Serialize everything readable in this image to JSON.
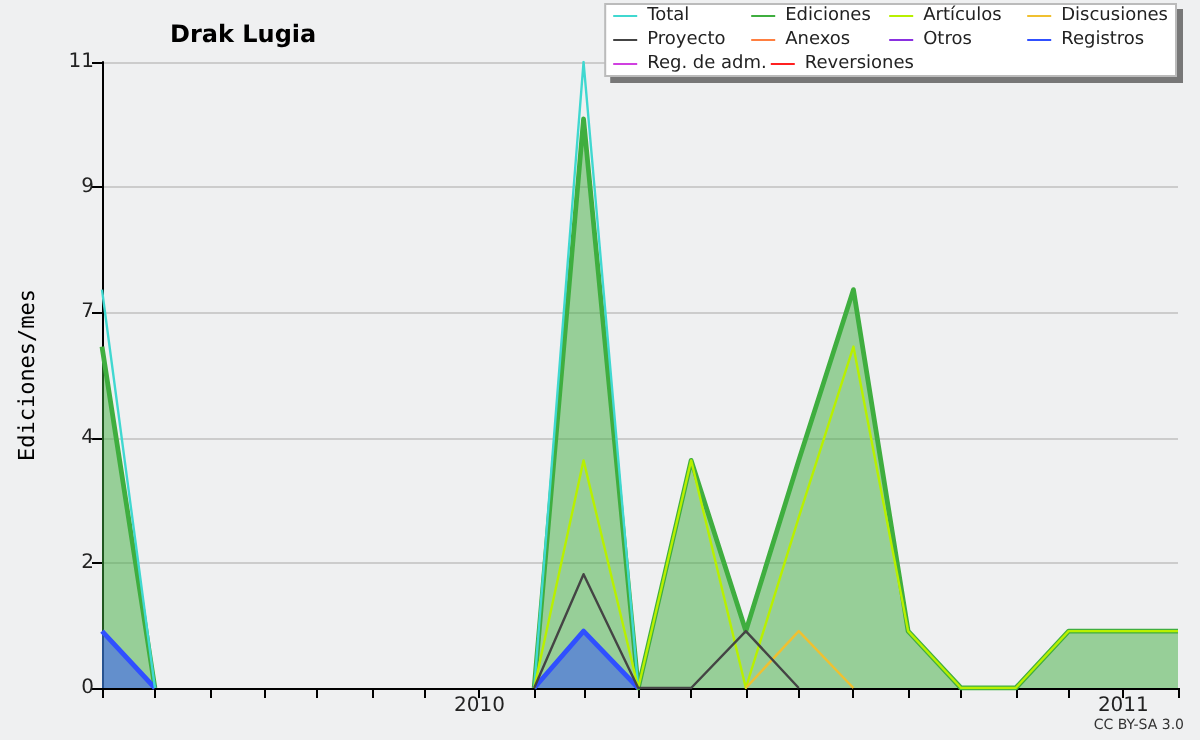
{
  "chart_data": {
    "type": "line",
    "title": "Drak Lugia",
    "ylabel": "Ediciones/mes",
    "annotations": [
      "CC BY-SA 3.0"
    ],
    "x": [
      "2009-06",
      "2009-07",
      "2009-08",
      "2009-09",
      "2009-10",
      "2009-11",
      "2009-12",
      "2010-01",
      "2010-02",
      "2010-03",
      "2010-04",
      "2010-05",
      "2010-06",
      "2010-07",
      "2010-08",
      "2010-09",
      "2010-10",
      "2010-11",
      "2010-12",
      "2011-01",
      "2011-02"
    ],
    "xlim": [
      "2009-06",
      "2011-02"
    ],
    "xticks": [
      {
        "value": "2009-06",
        "label": null
      },
      {
        "value": "2009-07",
        "label": null
      },
      {
        "value": "2009-08",
        "label": null
      },
      {
        "value": "2009-09",
        "label": null
      },
      {
        "value": "2009-10",
        "label": null
      },
      {
        "value": "2009-11",
        "label": null
      },
      {
        "value": "2009-12",
        "label": null
      },
      {
        "value": "2010-01",
        "label": "2010"
      },
      {
        "value": "2010-02",
        "label": null
      },
      {
        "value": "2010-03",
        "label": null
      },
      {
        "value": "2010-04",
        "label": null
      },
      {
        "value": "2010-05",
        "label": null
      },
      {
        "value": "2010-06",
        "label": null
      },
      {
        "value": "2010-07",
        "label": null
      },
      {
        "value": "2010-08",
        "label": null
      },
      {
        "value": "2010-09",
        "label": null
      },
      {
        "value": "2010-10",
        "label": null
      },
      {
        "value": "2010-11",
        "label": null
      },
      {
        "value": "2010-12",
        "label": null
      },
      {
        "value": "2011-01",
        "label": "2011"
      },
      {
        "value": "2011-02",
        "label": null
      }
    ],
    "ylim": [
      0,
      11
    ],
    "yticks": [
      0,
      {
        "value": 2.2,
        "label": "2"
      },
      {
        "value": 4.4,
        "label": "4"
      },
      {
        "value": 6.6,
        "label": "7"
      },
      {
        "value": 8.8,
        "label": "9"
      },
      11
    ],
    "grid": "y",
    "legend": "top right",
    "marker": "none",
    "line_style": "solid",
    "series": [
      {
        "name": "Ediciones",
        "type": "area",
        "color": "#3fae3f",
        "values": [
          6,
          0,
          null,
          null,
          null,
          null,
          null,
          null,
          0,
          10,
          0,
          4,
          1,
          4,
          7,
          1,
          0,
          0,
          1,
          1,
          1
        ]
      },
      {
        "name": "Total",
        "color": "#40d8d0",
        "values": [
          7,
          0,
          null,
          null,
          null,
          null,
          null,
          null,
          0,
          11,
          0,
          null,
          null,
          null,
          null,
          null,
          null,
          null,
          null,
          null,
          null
        ]
      },
      {
        "name": "Artículos",
        "color": "#b8f000",
        "values": [
          null,
          null,
          null,
          null,
          null,
          null,
          null,
          null,
          0,
          4,
          0,
          4,
          0,
          3,
          6,
          1,
          0,
          0,
          1,
          1,
          1
        ]
      },
      {
        "name": "Discusiones",
        "color": "#f0c030",
        "values": [
          null,
          null,
          null,
          null,
          null,
          null,
          null,
          null,
          null,
          null,
          null,
          null,
          0,
          1,
          0,
          null,
          null,
          null,
          null,
          null,
          null
        ]
      },
      {
        "name": "Proyecto",
        "color": "#444444",
        "values": [
          null,
          null,
          null,
          null,
          null,
          null,
          null,
          null,
          0,
          2,
          0,
          0,
          1,
          0,
          null,
          null,
          null,
          null,
          null,
          null,
          null
        ]
      },
      {
        "name": "Anexos",
        "color": "#ff7f40",
        "values": [
          null,
          null,
          null,
          null,
          null,
          null,
          null,
          null,
          null,
          null,
          null,
          null,
          null,
          null,
          null,
          null,
          null,
          null,
          null,
          null,
          null
        ]
      },
      {
        "name": "Otros",
        "color": "#8a30e0",
        "values": [
          null,
          null,
          null,
          null,
          null,
          null,
          null,
          null,
          null,
          null,
          null,
          null,
          null,
          null,
          null,
          null,
          null,
          null,
          null,
          null,
          null
        ]
      },
      {
        "name": "Registros",
        "type": "area",
        "color": "#3050ff",
        "values": [
          1,
          0,
          null,
          null,
          null,
          null,
          null,
          null,
          0,
          1,
          0,
          null,
          null,
          null,
          null,
          null,
          null,
          null,
          null,
          null,
          null
        ]
      },
      {
        "name": "Reg. de adm.",
        "color": "#d040e0",
        "values": [
          null,
          null,
          null,
          null,
          null,
          null,
          null,
          null,
          null,
          null,
          null,
          null,
          null,
          null,
          null,
          null,
          null,
          null,
          null,
          null,
          null
        ]
      },
      {
        "name": "Reversiones",
        "color": "#ff2020",
        "values": [
          null,
          null,
          null,
          null,
          null,
          null,
          null,
          null,
          null,
          null,
          null,
          null,
          null,
          null,
          null,
          null,
          null,
          null,
          null,
          null,
          null
        ]
      }
    ]
  }
}
